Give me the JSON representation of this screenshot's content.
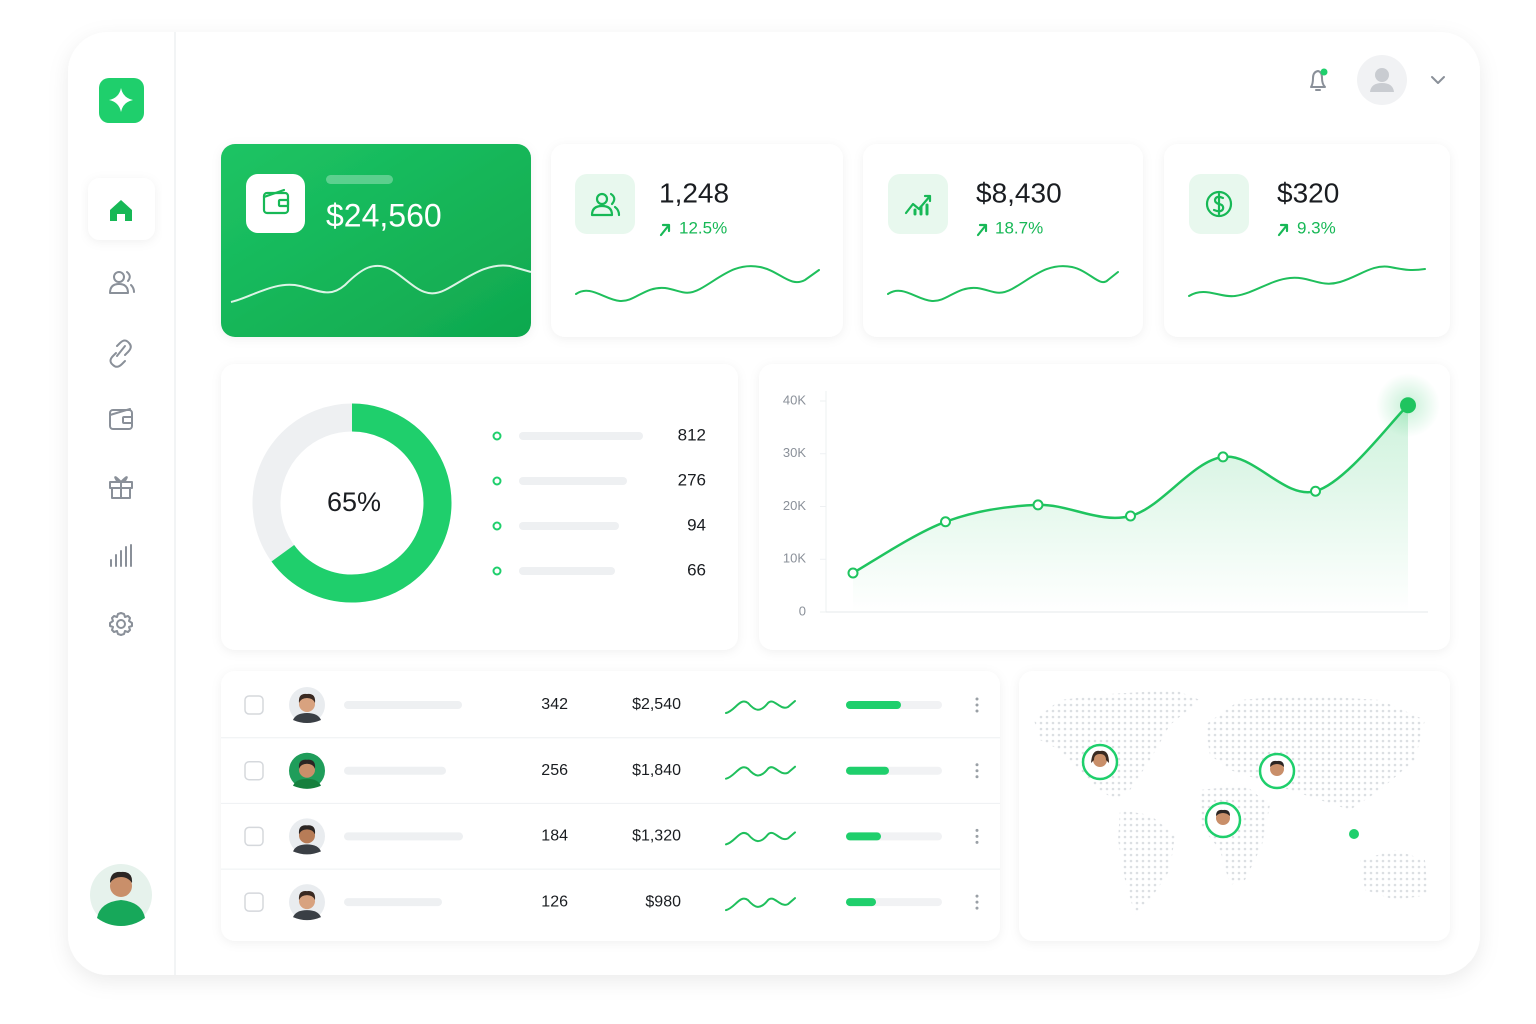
{
  "stats": [
    {
      "value": "$24,560"
    },
    {
      "value": "1,248",
      "change": "12.5%"
    },
    {
      "value": "$8,430",
      "change": "18.7%"
    },
    {
      "value": "$320",
      "change": "9.3%"
    }
  ],
  "breakdown": [
    812,
    276,
    94,
    66
  ],
  "chart_data": [
    {
      "type": "donut",
      "values": [
        65
      ],
      "value_labels": [
        "65%"
      ],
      "color": "#1fcf6c",
      "track_color": "#eef0f2"
    },
    {
      "type": "line",
      "categories": [
        null,
        null,
        null,
        null,
        null,
        null,
        null
      ],
      "values": [
        7400,
        17100,
        20300,
        18200,
        29400,
        22900,
        39200
      ],
      "color": "#1fc45f",
      "ylim": [
        0,
        40000
      ],
      "yticks": [
        0,
        {
          "value": 10000,
          "label": "10K"
        },
        {
          "value": 20000,
          "label": "20K"
        },
        {
          "value": 30000,
          "label": "30K"
        },
        {
          "value": 40000,
          "label": "40K"
        }
      ]
    }
  ],
  "table": {
    "rows": [
      {
        "count": 342,
        "amount": "$2,540"
      },
      {
        "count": 256,
        "amount": "$1,840"
      },
      {
        "count": 184,
        "amount": "$1,320"
      },
      {
        "count": 126,
        "amount": "$980"
      }
    ]
  }
}
